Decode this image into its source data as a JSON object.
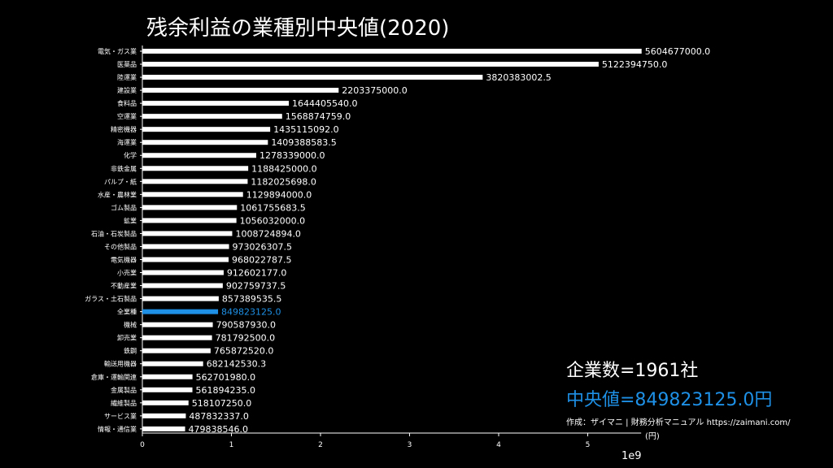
{
  "chart_data": {
    "type": "bar",
    "orientation": "horizontal",
    "title": "残余利益の業種別中央値(2020)",
    "x_exponent_label": "1e9",
    "x_ticks": [
      0,
      1,
      2,
      3,
      4,
      5
    ],
    "xlim": [
      0,
      5.6
    ],
    "highlight_category": "全業種",
    "colors": {
      "bar": "#ffffff",
      "highlight": "#1e90e6",
      "background": "#000000"
    },
    "categories": [
      "電気・ガス業",
      "医薬品",
      "陸運業",
      "建設業",
      "食料品",
      "空運業",
      "精密機器",
      "海運業",
      "化学",
      "非鉄金属",
      "パルプ・紙",
      "水産・農林業",
      "ゴム製品",
      "鉱業",
      "石油・石炭製品",
      "その他製品",
      "電気機器",
      "小売業",
      "不動産業",
      "ガラス・土石製品",
      "全業種",
      "機械",
      "卸売業",
      "鉄鋼",
      "輸送用機器",
      "倉庫・運輸関連",
      "金属製品",
      "繊維製品",
      "サービス業",
      "情報・通信業"
    ],
    "values": [
      5604677000.0,
      5122394750.0,
      3820383002.5,
      2203375000.0,
      1644405540.0,
      1568874759.0,
      1435115092.0,
      1409388583.5,
      1278339000.0,
      1188425000.0,
      1182025698.0,
      1129894000.0,
      1061755683.5,
      1056032000.0,
      1008724894.0,
      973026307.5,
      968022787.5,
      912602177.0,
      902759737.5,
      857389535.5,
      849823125.0,
      790587930.0,
      781792500.0,
      765872520.0,
      682142530.3,
      562701980.0,
      561894235.0,
      518107250.0,
      487832337.0,
      479838546.0
    ],
    "value_labels": [
      "5604677000.0",
      "5122394750.0",
      "3820383002.5",
      "2203375000.0",
      "1644405540.0",
      "1568874759.0",
      "1435115092.0",
      "1409388583.5",
      "1278339000.0",
      "1188425000.0",
      "1182025698.0",
      "1129894000.0",
      "1061755683.5",
      "1056032000.0",
      "1008724894.0",
      "973026307.5",
      "968022787.5",
      "912602177.0",
      "902759737.5",
      "857389535.5",
      "849823125.0",
      "790587930.0",
      "781792500.0",
      "765872520.0",
      "682142530.3",
      "562701980.0",
      "561894235.0",
      "518107250.0",
      "487832337.0",
      "479838546.0"
    ]
  },
  "annotations": {
    "company_count": "企業数=1961社",
    "median": "中央値=849823125.0円",
    "credit": "作成：ザイマニ | 財務分析マニュアル https://zaimani.com/",
    "unit": "(円)"
  }
}
